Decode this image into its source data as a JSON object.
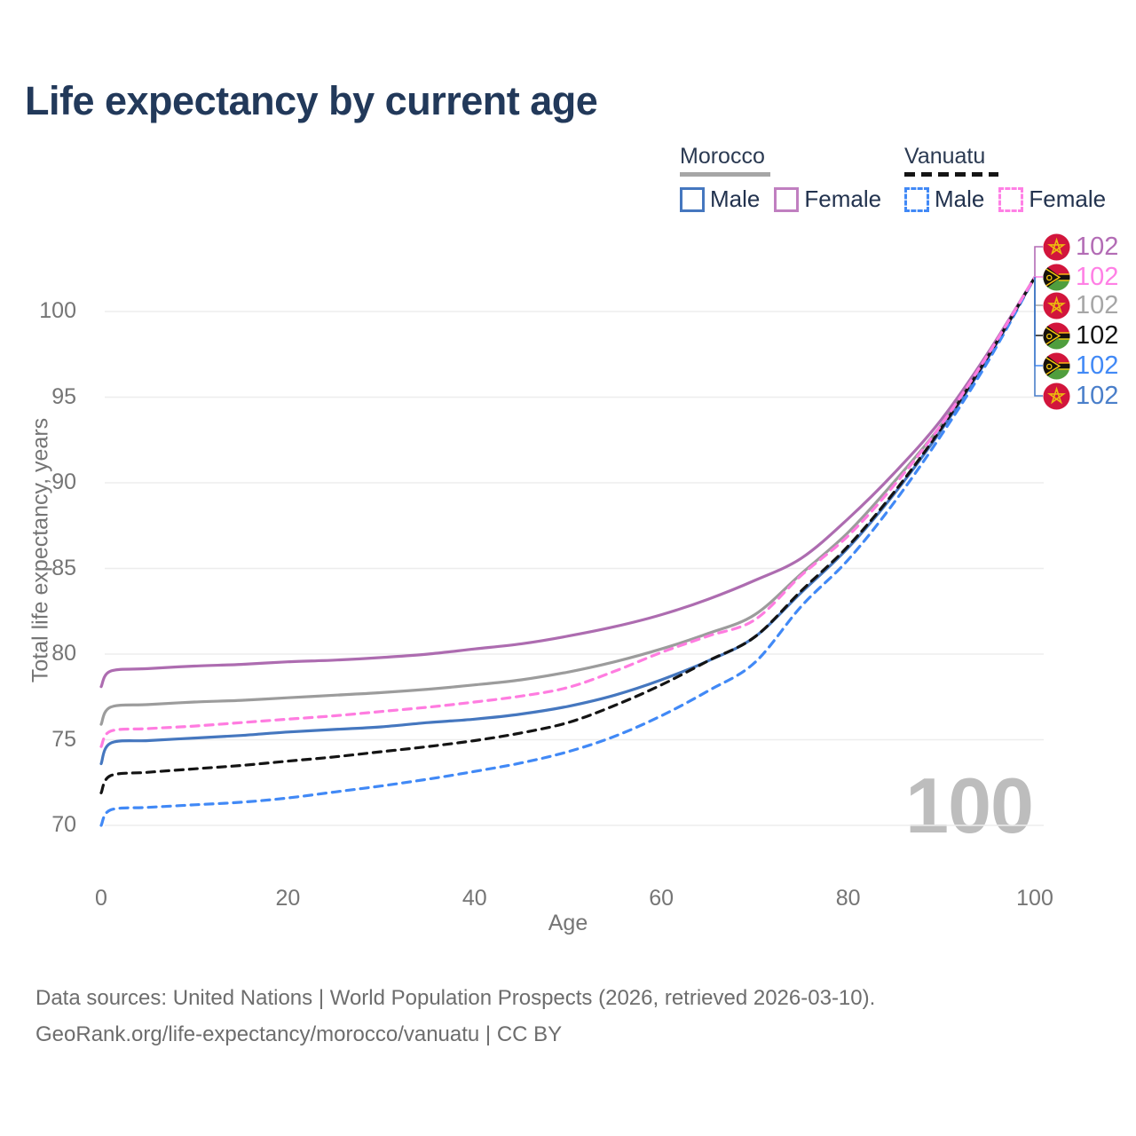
{
  "title": "Life expectancy by current age",
  "legend": {
    "groups": [
      {
        "label": "Morocco",
        "line_style": "solid",
        "items": [
          {
            "label": "Male",
            "color": "#4577bf"
          },
          {
            "label": "Female",
            "color": "#c07fc0"
          }
        ]
      },
      {
        "label": "Vanuatu",
        "line_style": "dashed",
        "items": [
          {
            "label": "Male",
            "color": "#4189f6"
          },
          {
            "label": "Female",
            "color": "#ff80e5"
          }
        ]
      }
    ]
  },
  "chart_data": {
    "type": "line",
    "title": "Life expectancy by current age",
    "xlabel": "Age",
    "ylabel": "Total life expectancy, years",
    "xlim": [
      0,
      100
    ],
    "ylim": [
      69,
      103
    ],
    "xticks": [
      0,
      20,
      40,
      60,
      80,
      100
    ],
    "yticks": [
      70,
      75,
      80,
      85,
      90,
      95,
      100
    ],
    "grid": "horizontal",
    "legend_position": "top-right",
    "series": [
      {
        "id": "morocco-male",
        "name": "Morocco Male",
        "country": "Morocco",
        "sex": "Male",
        "color": "#4577bf",
        "dashed": false,
        "end_label": "102",
        "label_color": "#4a7fca",
        "flag": "morocco",
        "row": 5,
        "points": [
          [
            0,
            73.6
          ],
          [
            1,
            74.8
          ],
          [
            5,
            74.95
          ],
          [
            10,
            75.1
          ],
          [
            15,
            75.25
          ],
          [
            20,
            75.45
          ],
          [
            25,
            75.6
          ],
          [
            30,
            75.75
          ],
          [
            35,
            76.0
          ],
          [
            40,
            76.2
          ],
          [
            45,
            76.5
          ],
          [
            50,
            76.95
          ],
          [
            55,
            77.6
          ],
          [
            60,
            78.5
          ],
          [
            65,
            79.6
          ],
          [
            70,
            81.0
          ],
          [
            75,
            83.6
          ],
          [
            80,
            86.2
          ],
          [
            85,
            89.4
          ],
          [
            90,
            93.1
          ],
          [
            95,
            97.3
          ],
          [
            100,
            102
          ]
        ]
      },
      {
        "id": "morocco-both",
        "name": "Morocco Both sexes",
        "country": "Morocco",
        "sex": "Both",
        "color": "#9c9c9c",
        "dashed": false,
        "end_label": "102",
        "label_color": "#a6a6a6",
        "flag": "morocco",
        "row": 2,
        "points": [
          [
            0,
            75.9
          ],
          [
            1,
            76.9
          ],
          [
            5,
            77.05
          ],
          [
            10,
            77.2
          ],
          [
            15,
            77.3
          ],
          [
            20,
            77.45
          ],
          [
            25,
            77.6
          ],
          [
            30,
            77.75
          ],
          [
            35,
            77.95
          ],
          [
            40,
            78.2
          ],
          [
            45,
            78.5
          ],
          [
            50,
            78.95
          ],
          [
            55,
            79.55
          ],
          [
            60,
            80.3
          ],
          [
            65,
            81.2
          ],
          [
            70,
            82.3
          ],
          [
            75,
            84.7
          ],
          [
            80,
            87.1
          ],
          [
            85,
            90.1
          ],
          [
            90,
            93.4
          ],
          [
            95,
            97.5
          ],
          [
            100,
            102
          ]
        ]
      },
      {
        "id": "morocco-female",
        "name": "Morocco Female",
        "country": "Morocco",
        "sex": "Female",
        "color": "#ad6cb0",
        "dashed": false,
        "end_label": "102",
        "label_color": "#b36cb5",
        "flag": "morocco",
        "row": 0,
        "points": [
          [
            0,
            78.1
          ],
          [
            1,
            79.0
          ],
          [
            5,
            79.15
          ],
          [
            10,
            79.3
          ],
          [
            15,
            79.4
          ],
          [
            20,
            79.55
          ],
          [
            25,
            79.65
          ],
          [
            30,
            79.8
          ],
          [
            35,
            80.0
          ],
          [
            40,
            80.3
          ],
          [
            45,
            80.6
          ],
          [
            50,
            81.05
          ],
          [
            55,
            81.6
          ],
          [
            60,
            82.3
          ],
          [
            65,
            83.2
          ],
          [
            70,
            84.3
          ],
          [
            75,
            85.6
          ],
          [
            80,
            87.9
          ],
          [
            85,
            90.6
          ],
          [
            90,
            93.7
          ],
          [
            95,
            97.6
          ],
          [
            100,
            102
          ]
        ]
      },
      {
        "id": "vanuatu-male",
        "name": "Vanuatu Male",
        "country": "Vanuatu",
        "sex": "Male",
        "color": "#4189f6",
        "dashed": true,
        "end_label": "102",
        "label_color": "#4189f6",
        "flag": "vanuatu",
        "row": 4,
        "points": [
          [
            0,
            70.0
          ],
          [
            1,
            70.9
          ],
          [
            5,
            71.05
          ],
          [
            10,
            71.2
          ],
          [
            15,
            71.35
          ],
          [
            20,
            71.6
          ],
          [
            25,
            71.95
          ],
          [
            30,
            72.3
          ],
          [
            35,
            72.7
          ],
          [
            40,
            73.15
          ],
          [
            45,
            73.65
          ],
          [
            50,
            74.3
          ],
          [
            55,
            75.2
          ],
          [
            60,
            76.4
          ],
          [
            65,
            77.85
          ],
          [
            70,
            79.5
          ],
          [
            75,
            82.8
          ],
          [
            80,
            85.5
          ],
          [
            85,
            88.9
          ],
          [
            90,
            92.8
          ],
          [
            95,
            97.1
          ],
          [
            100,
            102
          ]
        ]
      },
      {
        "id": "vanuatu-both",
        "name": "Vanuatu Both sexes",
        "country": "Vanuatu",
        "sex": "Both",
        "color": "#141414",
        "dashed": true,
        "end_label": "102",
        "label_color": "#141414",
        "flag": "vanuatu",
        "row": 3,
        "points": [
          [
            0,
            71.9
          ],
          [
            1,
            72.9
          ],
          [
            5,
            73.1
          ],
          [
            10,
            73.3
          ],
          [
            15,
            73.5
          ],
          [
            20,
            73.75
          ],
          [
            25,
            74.0
          ],
          [
            30,
            74.3
          ],
          [
            35,
            74.6
          ],
          [
            40,
            74.95
          ],
          [
            45,
            75.4
          ],
          [
            50,
            76.0
          ],
          [
            55,
            77.0
          ],
          [
            60,
            78.2
          ],
          [
            65,
            79.6
          ],
          [
            70,
            81.0
          ],
          [
            75,
            83.7
          ],
          [
            80,
            86.3
          ],
          [
            85,
            89.5
          ],
          [
            90,
            93.2
          ],
          [
            95,
            97.4
          ],
          [
            100,
            102
          ]
        ]
      },
      {
        "id": "vanuatu-female",
        "name": "Vanuatu Female",
        "country": "Vanuatu",
        "sex": "Female",
        "color": "#ff7ce0",
        "dashed": true,
        "end_label": "102",
        "label_color": "#ff80e5",
        "flag": "vanuatu",
        "row": 1,
        "points": [
          [
            0,
            74.6
          ],
          [
            1,
            75.5
          ],
          [
            5,
            75.65
          ],
          [
            10,
            75.8
          ],
          [
            15,
            76.0
          ],
          [
            20,
            76.2
          ],
          [
            25,
            76.4
          ],
          [
            30,
            76.65
          ],
          [
            35,
            76.9
          ],
          [
            40,
            77.2
          ],
          [
            45,
            77.55
          ],
          [
            50,
            78.05
          ],
          [
            55,
            79.0
          ],
          [
            60,
            80.1
          ],
          [
            65,
            81.05
          ],
          [
            70,
            82.0
          ],
          [
            75,
            84.6
          ],
          [
            80,
            86.9
          ],
          [
            85,
            89.9
          ],
          [
            90,
            93.4
          ],
          [
            95,
            97.5
          ],
          [
            100,
            102
          ]
        ]
      }
    ]
  },
  "watermark": "100",
  "colors": {
    "grid": "#ededed",
    "axis_text": "#757575",
    "title_text": "#22395a",
    "morocco_flag_red": "#d2153c",
    "flag_star_gold": "#edb90f",
    "vanuatu_green": "#4f9e3d",
    "vanuatu_black": "#16120d",
    "vanuatu_yellow": "#f2c40e"
  },
  "footer": {
    "line1": "Data sources: United Nations | World Population Prospects (2026, retrieved 2026-03-10).",
    "line2": "GeoRank.org/life-expectancy/morocco/vanuatu | CC BY"
  }
}
